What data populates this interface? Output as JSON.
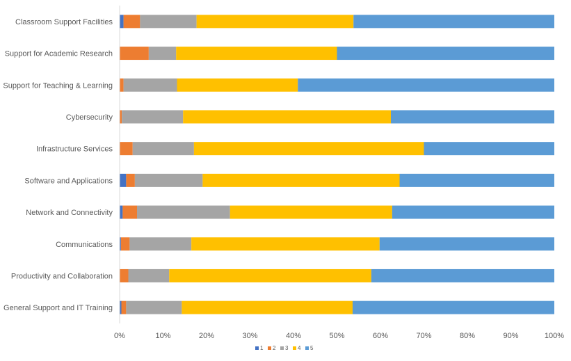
{
  "chart_data": {
    "type": "bar",
    "orientation": "horizontal",
    "stacked": "percent",
    "title": "",
    "xlabel": "",
    "ylabel": "",
    "xlim": [
      0,
      100
    ],
    "x_ticks": [
      "0%",
      "10%",
      "20%",
      "30%",
      "40%",
      "50%",
      "60%",
      "70%",
      "80%",
      "90%",
      "100%"
    ],
    "grid": false,
    "legend_position": "bottom",
    "categories": [
      "Classroom Support Facilities",
      "Support for Academic Research",
      "Support for Teaching & Learning",
      "Cybersecurity",
      "Infrastructure Services",
      "Software and Applications",
      "Network and Connectivity",
      "Communications",
      "Productivity and Collaboration",
      "General Support and IT Training"
    ],
    "series": [
      {
        "name": "1",
        "color": "#4472C4",
        "values": [
          0.9,
          0.0,
          0.0,
          0.0,
          0.0,
          1.5,
          0.7,
          0.3,
          0.0,
          0.4
        ]
      },
      {
        "name": "2",
        "color": "#ED7D31",
        "values": [
          3.8,
          6.7,
          0.9,
          0.5,
          3.0,
          2.0,
          3.3,
          2.0,
          2.0,
          1.1
        ]
      },
      {
        "name": "3",
        "color": "#A5A5A5",
        "values": [
          13.0,
          6.3,
          12.3,
          14.1,
          14.1,
          15.6,
          21.4,
          14.2,
          9.4,
          12.8
        ]
      },
      {
        "name": "4",
        "color": "#FFC000",
        "values": [
          36.1,
          37.0,
          27.8,
          47.8,
          52.9,
          45.3,
          37.3,
          43.3,
          46.5,
          39.3
        ]
      },
      {
        "name": "5",
        "color": "#5B9BD5",
        "values": [
          46.2,
          50.0,
          59.0,
          37.6,
          30.0,
          35.6,
          37.3,
          40.2,
          42.1,
          46.4
        ]
      }
    ]
  }
}
